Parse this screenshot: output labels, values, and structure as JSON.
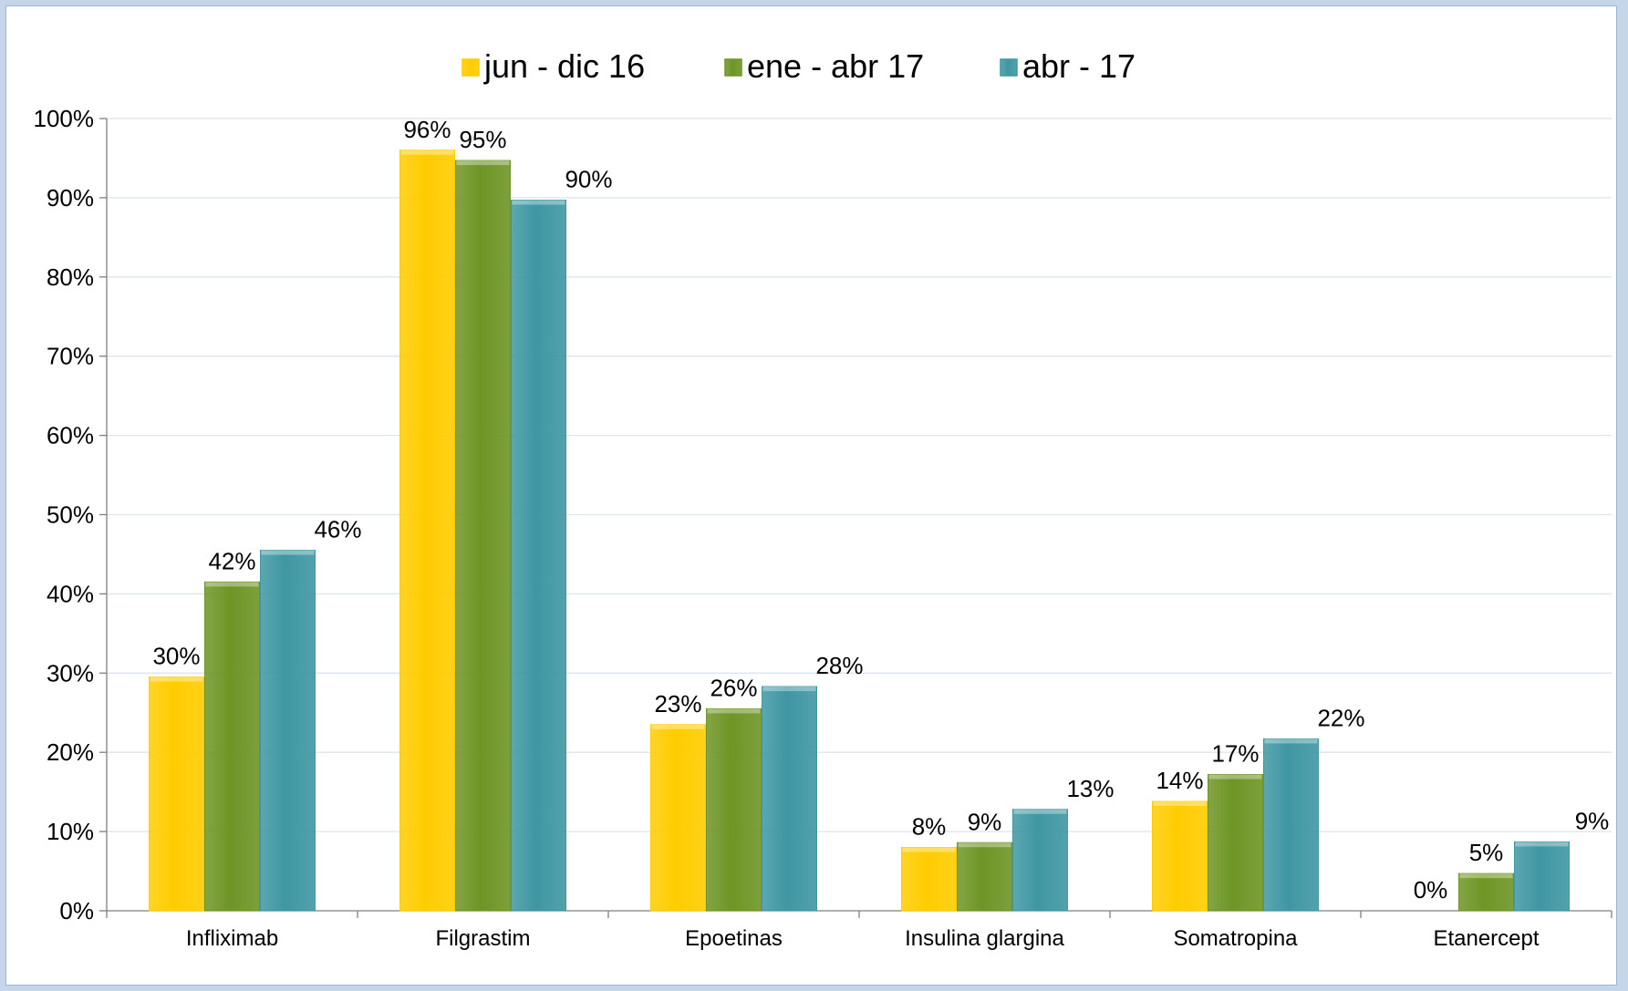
{
  "chart_data": {
    "type": "bar",
    "categories": [
      "Infliximab",
      "Filgrastim",
      "Epoetinas",
      "Insulina glargina",
      "Somatropina",
      "Etanercept"
    ],
    "series": [
      {
        "name": "jun - dic 16",
        "color": "#ffcc00",
        "values": [
          0.295,
          0.96,
          0.235,
          0.08,
          0.138,
          0.0
        ],
        "labels": [
          "30%",
          "96%",
          "23%",
          "8%",
          "14%",
          "0%"
        ]
      },
      {
        "name": "ene - abr 17",
        "color": "#6e9526",
        "values": [
          0.415,
          0.947,
          0.255,
          0.086,
          0.172,
          0.047
        ],
        "labels": [
          "42%",
          "95%",
          "26%",
          "9%",
          "17%",
          "5%"
        ]
      },
      {
        "name": "abr - 17",
        "color": "#3f97a3",
        "values": [
          0.455,
          0.897,
          0.283,
          0.128,
          0.217,
          0.087
        ],
        "labels": [
          "46%",
          "90%",
          "28%",
          "13%",
          "22%",
          "9%"
        ]
      }
    ],
    "ylim": [
      0,
      1
    ],
    "yticks": [
      "0%",
      "10%",
      "20%",
      "30%",
      "40%",
      "50%",
      "60%",
      "70%",
      "80%",
      "90%",
      "100%"
    ],
    "grid": true,
    "legend_position": "top"
  }
}
